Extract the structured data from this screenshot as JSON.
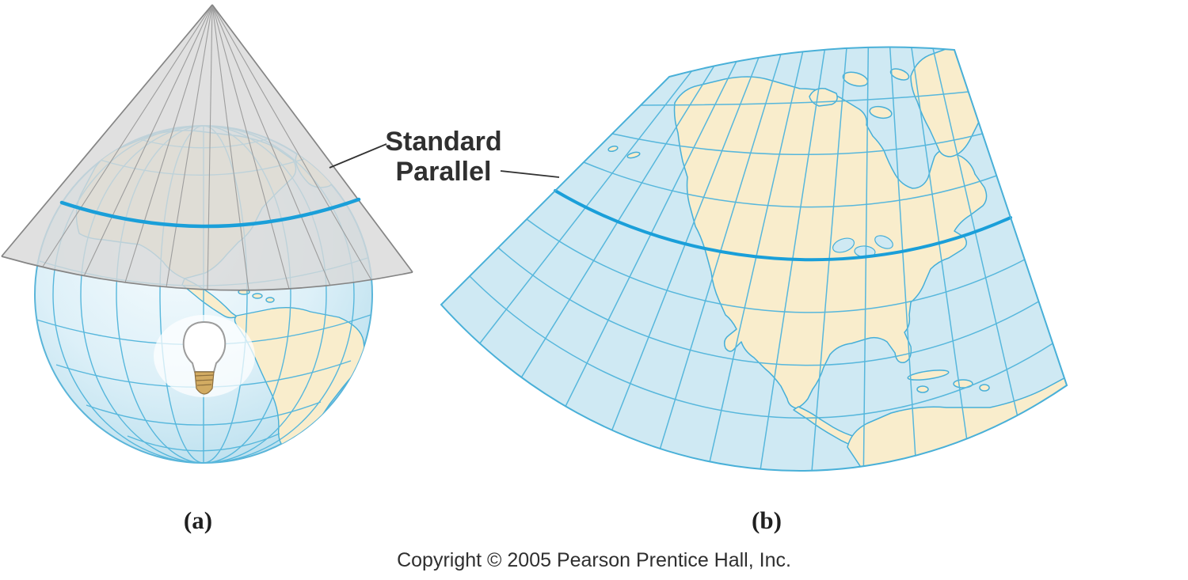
{
  "annotation": {
    "line1": "Standard",
    "line2": "Parallel"
  },
  "figure_labels": {
    "a": "(a)",
    "b": "(b)"
  },
  "copyright": "Copyright © 2005 Pearson Prentice Hall, Inc.",
  "colors": {
    "water_blue": "#cfe9f3",
    "land_cream": "#f9edcc",
    "graticule_blue": "#57b7dc",
    "coastline_blue": "#46afd8",
    "standard_parallel_blue": "#1a9fd9",
    "cone_gray": "#d8d8d8",
    "cone_edge_gray": "#858585",
    "label_text": "#2b2b2b"
  }
}
